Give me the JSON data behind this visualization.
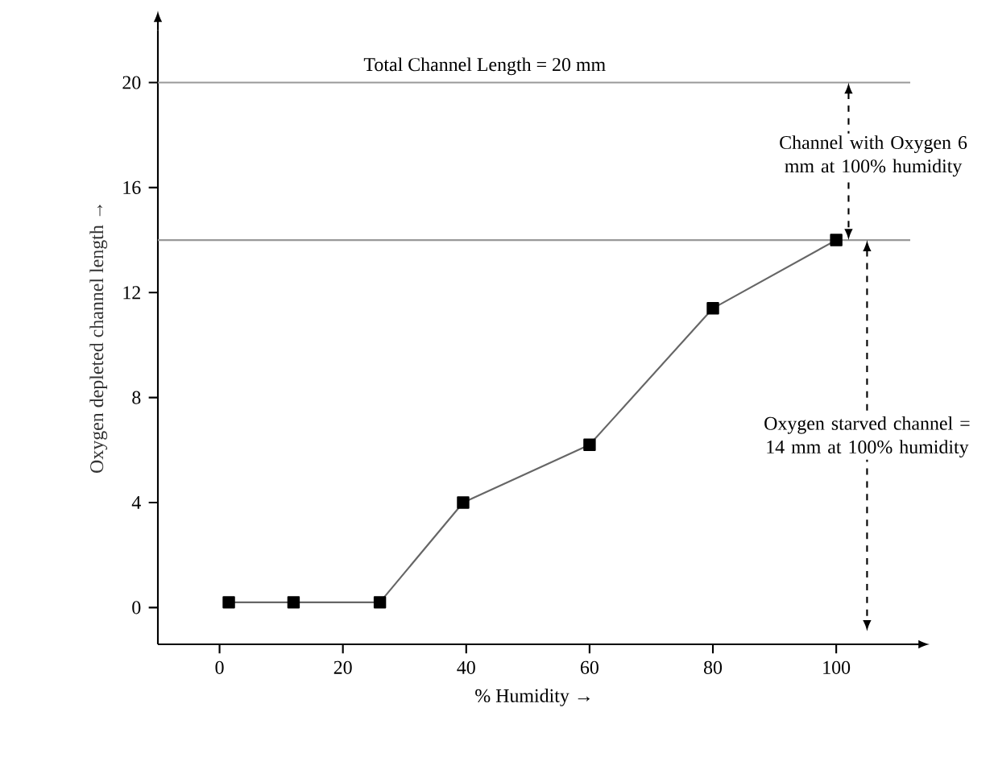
{
  "chart_data": {
    "type": "line",
    "xlabel": "% Humidity →",
    "ylabel": "Oxygen depleted channel length →",
    "x": [
      1.5,
      12,
      26,
      39.5,
      60,
      80,
      100
    ],
    "series": [
      {
        "color": "#000000",
        "values": [
          0.2,
          0.2,
          0.2,
          4,
          6.2,
          11.4,
          14
        ]
      }
    ],
    "xlim": [
      -10,
      112
    ],
    "ylim": [
      -1.4,
      22
    ],
    "xticks": [
      0,
      20,
      40,
      60,
      80,
      100
    ],
    "yticks": [
      0,
      4,
      8,
      12,
      16,
      20
    ],
    "marker": "square",
    "line_style": "solid",
    "grid": false,
    "ref_lines": [
      {
        "axis": "y",
        "value": 20,
        "label": "Total Channel Length = 20 mm",
        "color": "#999999"
      },
      {
        "axis": "y",
        "value": 14,
        "label": null,
        "color": "#999999"
      }
    ],
    "annotations": [
      "Channel with Oxygen 6 mm at 100% humidity",
      "Oxygen starved channel = 14 mm at 100% humidity"
    ]
  }
}
